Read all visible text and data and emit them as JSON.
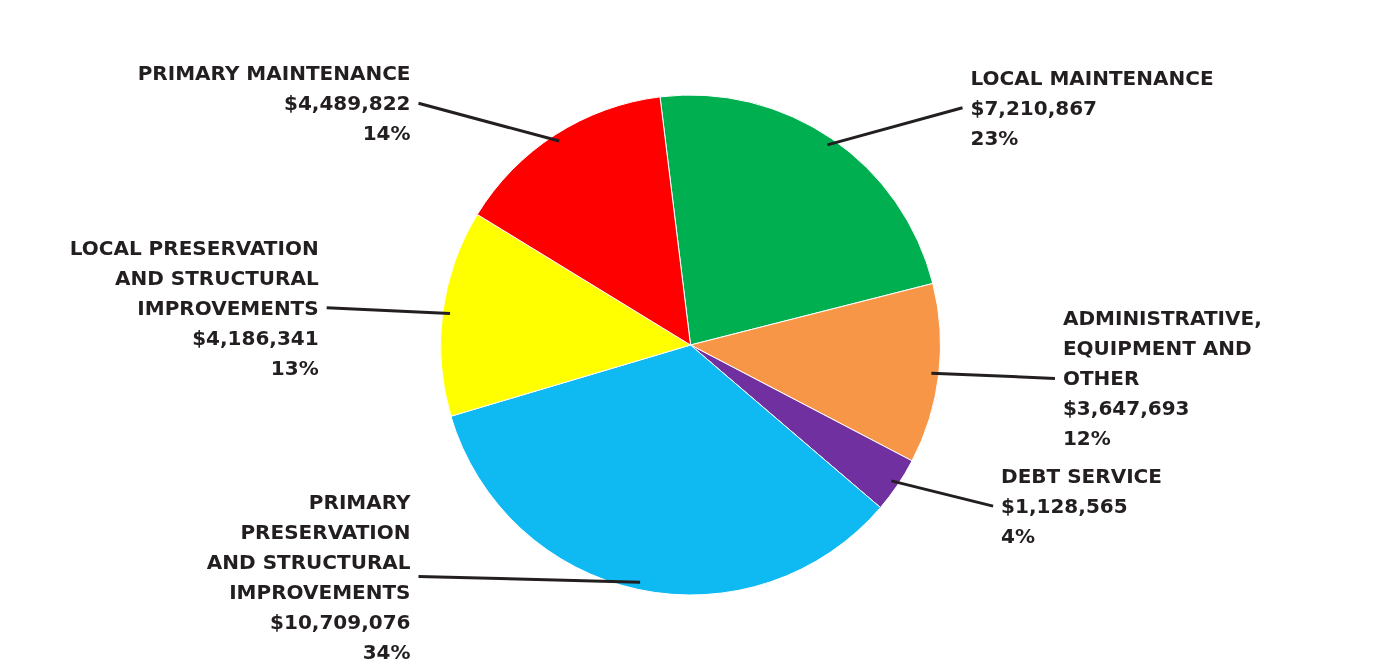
{
  "chart_data": {
    "type": "pie",
    "categories": [
      "LOCAL MAINTENANCE",
      "ADMINISTRATIVE,\nEQUIPMENT AND\nOTHER",
      "DEBT SERVICE",
      "PRIMARY\nPRESERVATION\nAND STRUCTURAL\nIMPROVEMENTS",
      "LOCAL PRESERVATION\nAND STRUCTURAL\nIMPROVEMENTS",
      "PRIMARY MAINTENANCE"
    ],
    "values": [
      7210867,
      3647693,
      1128565,
      10709076,
      4186341,
      4489822
    ],
    "colors": [
      "#00b050",
      "#f79646",
      "#7030a0",
      "#0fb9f2",
      "#ffff00",
      "#ff0000"
    ],
    "value_labels": [
      "$7,210,867\n23%",
      "$3,647,693\n12%",
      "$1,128,565\n4%",
      "$10,709,076\n34%",
      "$4,186,341\n13%",
      "$4,489,822\n14%"
    ]
  }
}
